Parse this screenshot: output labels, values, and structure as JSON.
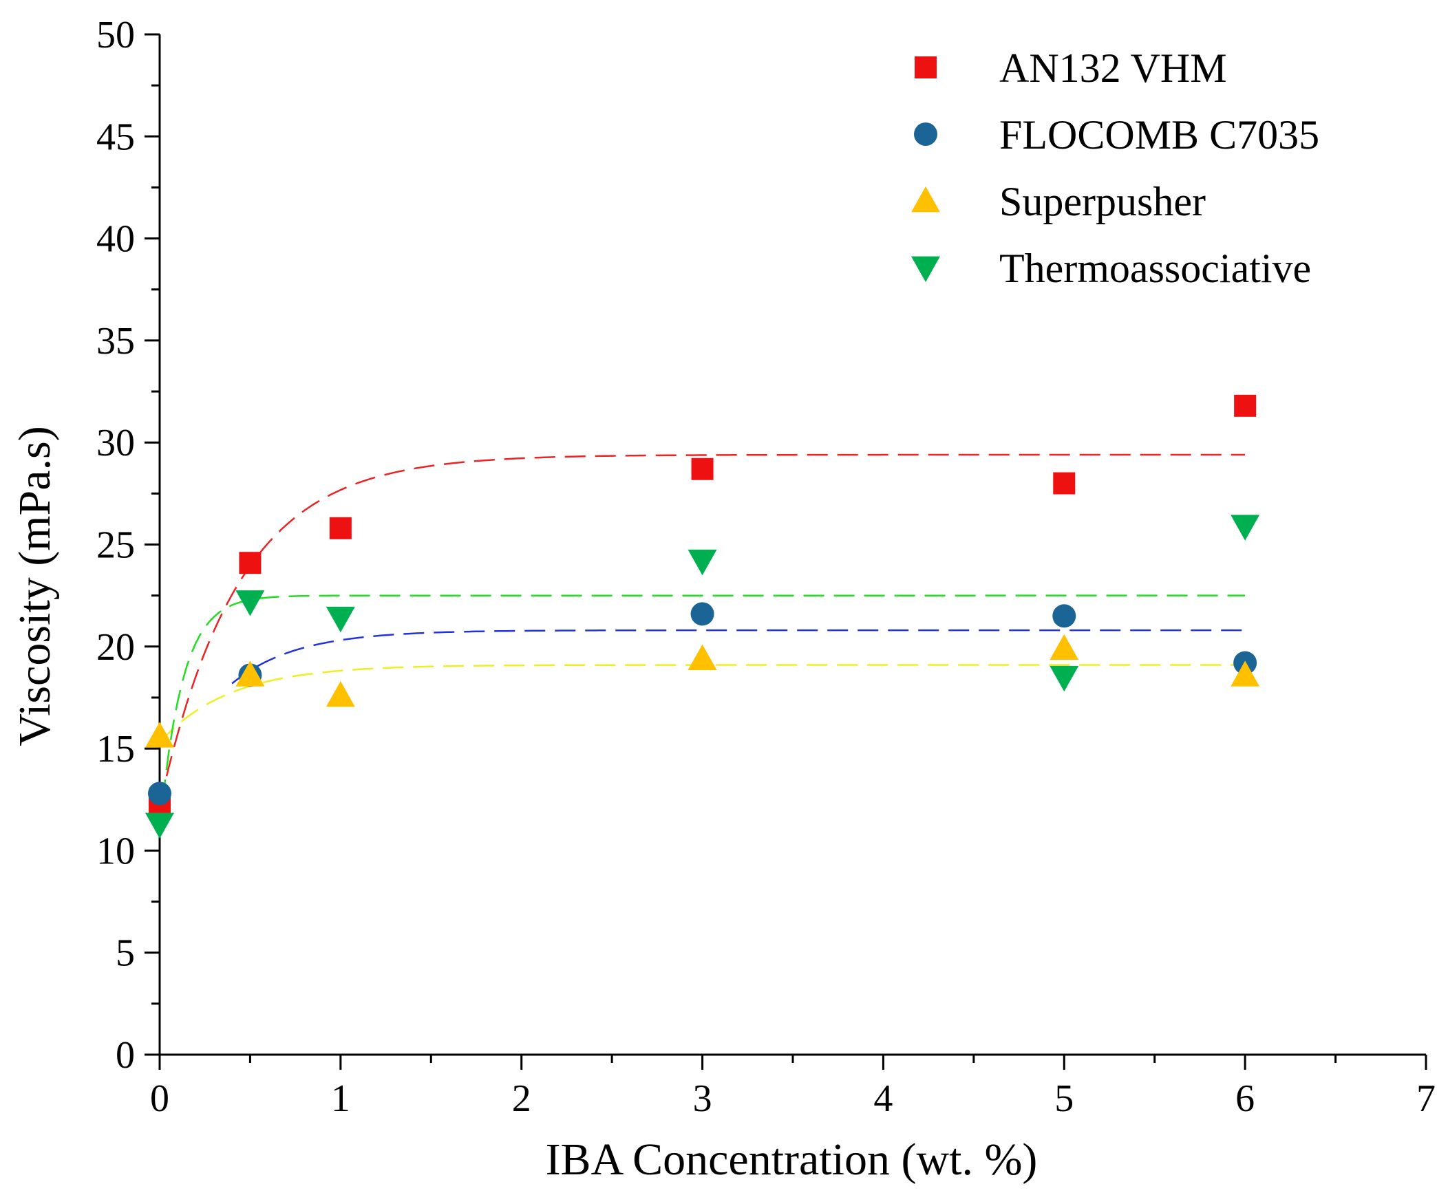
{
  "chart_data": {
    "type": "scatter",
    "title": "",
    "xlabel": "IBA Concentration (wt. %)",
    "ylabel": "Viscosity (mPa.s)",
    "xlim": [
      0,
      7
    ],
    "ylim": [
      0,
      50
    ],
    "xticks": [
      0,
      1,
      2,
      3,
      4,
      5,
      6,
      7
    ],
    "yticks": [
      0,
      5,
      10,
      15,
      20,
      25,
      30,
      35,
      40,
      45,
      50
    ],
    "legend_position": "top-right",
    "series": [
      {
        "name": "AN132 VHM",
        "marker": "square",
        "color": "#ee1111",
        "x": [
          0,
          0.5,
          1,
          3,
          5,
          6
        ],
        "y": [
          12.2,
          24.1,
          25.8,
          28.7,
          28.0,
          31.8
        ],
        "fit": {
          "kind": "exponential",
          "a": 29.4,
          "b": 17.2,
          "k": 2.3,
          "color": "#ee2222",
          "x_range": [
            0,
            6
          ]
        }
      },
      {
        "name": "FLOCOMB C7035",
        "marker": "circle",
        "color": "#1a6496",
        "x": [
          0,
          0.5,
          3,
          5,
          6
        ],
        "y": [
          12.8,
          18.6,
          21.6,
          21.5,
          19.2
        ],
        "fit": {
          "kind": "exponential",
          "a": 20.8,
          "b": 8.0,
          "k": 2.8,
          "color": "#2233dd",
          "x_range": [
            0.4,
            6
          ]
        }
      },
      {
        "name": "Superpusher",
        "marker": "triangle-up",
        "color": "#ffc000",
        "x": [
          0,
          0.5,
          1,
          3,
          5,
          6
        ],
        "y": [
          15.6,
          18.6,
          17.6,
          19.4,
          19.9,
          18.6
        ],
        "fit": {
          "kind": "exponential",
          "a": 19.1,
          "b": 3.8,
          "k": 2.6,
          "color": "#eeee22",
          "x_range": [
            0,
            6
          ]
        }
      },
      {
        "name": "Thermoassociative",
        "marker": "triangle-down",
        "color": "#00b050",
        "x": [
          0,
          0.5,
          1,
          3,
          5,
          6
        ],
        "y": [
          11.3,
          22.2,
          21.4,
          24.2,
          18.5,
          25.9
        ],
        "fit": {
          "kind": "exponential",
          "a": 22.5,
          "b": 11.5,
          "k": 8.0,
          "color": "#22dd22",
          "x_range": [
            0,
            6
          ]
        }
      }
    ]
  }
}
